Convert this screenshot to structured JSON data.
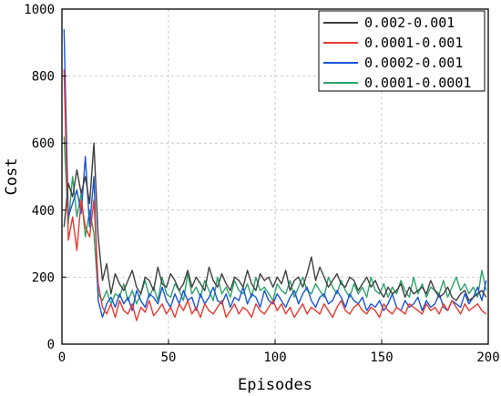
{
  "chart_data": {
    "type": "line",
    "xlabel": "Episodes",
    "ylabel": "Cost",
    "xlim": [
      0,
      200
    ],
    "ylim": [
      0,
      1000
    ],
    "xticks": [
      0,
      50,
      100,
      150,
      200
    ],
    "yticks": [
      0,
      200,
      400,
      600,
      800,
      1000
    ],
    "grid": true,
    "legend_position": "top-right",
    "series": [
      {
        "name": "0.002-0.001",
        "color": "#3f3f3f",
        "x": [
          1,
          3,
          5,
          7,
          9,
          11,
          13,
          15,
          17,
          19,
          21,
          23,
          25,
          27,
          29,
          31,
          33,
          35,
          37,
          39,
          41,
          43,
          45,
          47,
          49,
          51,
          53,
          55,
          57,
          59,
          61,
          63,
          65,
          67,
          69,
          71,
          73,
          75,
          77,
          79,
          81,
          83,
          85,
          87,
          89,
          91,
          93,
          95,
          97,
          99,
          101,
          103,
          105,
          107,
          109,
          111,
          113,
          115,
          117,
          119,
          121,
          123,
          125,
          127,
          129,
          131,
          133,
          135,
          137,
          139,
          141,
          143,
          145,
          147,
          149,
          151,
          153,
          155,
          157,
          159,
          161,
          163,
          165,
          167,
          169,
          171,
          173,
          175,
          177,
          179,
          181,
          183,
          185,
          187,
          189,
          191,
          193,
          195,
          197,
          199
        ],
        "y": [
          350,
          480,
          440,
          520,
          450,
          500,
          420,
          600,
          320,
          190,
          240,
          150,
          210,
          180,
          160,
          190,
          220,
          170,
          150,
          200,
          190,
          160,
          230,
          180,
          170,
          210,
          190,
          160,
          180,
          220,
          170,
          200,
          180,
          160,
          230,
          190,
          170,
          210,
          180,
          160,
          200,
          190,
          170,
          220,
          180,
          160,
          210,
          190,
          200,
          170,
          200,
          180,
          220,
          160,
          190,
          200,
          170,
          210,
          260,
          190,
          230,
          200,
          170,
          190,
          210,
          180,
          170,
          200,
          190,
          160,
          180,
          200,
          170,
          190,
          160,
          140,
          170,
          150,
          160,
          180,
          140,
          170,
          150,
          160,
          170,
          150,
          190,
          160,
          140,
          150,
          170,
          140,
          130,
          150,
          160,
          130,
          140,
          150,
          160,
          140
        ]
      },
      {
        "name": "0.0001-0.001",
        "color": "#e8392f",
        "x": [
          1,
          3,
          5,
          7,
          9,
          11,
          13,
          15,
          17,
          19,
          21,
          23,
          25,
          27,
          29,
          31,
          33,
          35,
          37,
          39,
          41,
          43,
          45,
          47,
          49,
          51,
          53,
          55,
          57,
          59,
          61,
          63,
          65,
          67,
          69,
          71,
          73,
          75,
          77,
          79,
          81,
          83,
          85,
          87,
          89,
          91,
          93,
          95,
          97,
          99,
          101,
          103,
          105,
          107,
          109,
          111,
          113,
          115,
          117,
          119,
          121,
          123,
          125,
          127,
          129,
          131,
          133,
          135,
          137,
          139,
          141,
          143,
          145,
          147,
          149,
          151,
          153,
          155,
          157,
          159,
          161,
          163,
          165,
          167,
          169,
          171,
          173,
          175,
          177,
          179,
          181,
          183,
          185,
          187,
          189,
          191,
          193,
          195,
          197,
          199
        ],
        "y": [
          820,
          310,
          380,
          280,
          430,
          350,
          320,
          430,
          180,
          110,
          90,
          120,
          80,
          130,
          100,
          90,
          120,
          70,
          110,
          95,
          130,
          85,
          100,
          120,
          90,
          110,
          80,
          120,
          100,
          130,
          90,
          110,
          80,
          120,
          100,
          90,
          110,
          130,
          80,
          100,
          120,
          90,
          110,
          100,
          80,
          120,
          100,
          90,
          110,
          130,
          100,
          120,
          90,
          110,
          80,
          100,
          120,
          90,
          110,
          100,
          90,
          120,
          100,
          80,
          110,
          130,
          100,
          90,
          110,
          120,
          100,
          90,
          110,
          100,
          80,
          120,
          100,
          90,
          110,
          100,
          90,
          120,
          110,
          100,
          90,
          120,
          100,
          110,
          90,
          120,
          100,
          130,
          110,
          90,
          120,
          100,
          110,
          120,
          100,
          90
        ]
      },
      {
        "name": "0.0002-0.001",
        "color": "#1a54d6",
        "x": [
          1,
          3,
          5,
          7,
          9,
          11,
          13,
          15,
          17,
          19,
          21,
          23,
          25,
          27,
          29,
          31,
          33,
          35,
          37,
          39,
          41,
          43,
          45,
          47,
          49,
          51,
          53,
          55,
          57,
          59,
          61,
          63,
          65,
          67,
          69,
          71,
          73,
          75,
          77,
          79,
          81,
          83,
          85,
          87,
          89,
          91,
          93,
          95,
          97,
          99,
          101,
          103,
          105,
          107,
          109,
          111,
          113,
          115,
          117,
          119,
          121,
          123,
          125,
          127,
          129,
          131,
          133,
          135,
          137,
          139,
          141,
          143,
          145,
          147,
          149,
          151,
          153,
          155,
          157,
          159,
          161,
          163,
          165,
          167,
          169,
          171,
          173,
          175,
          177,
          179,
          181,
          183,
          185,
          187,
          189,
          191,
          193,
          195,
          197,
          199
        ],
        "y": [
          940,
          380,
          420,
          460,
          390,
          560,
          350,
          500,
          130,
          80,
          120,
          140,
          110,
          150,
          120,
          140,
          100,
          160,
          130,
          110,
          150,
          140,
          120,
          170,
          130,
          110,
          150,
          120,
          160,
          130,
          140,
          100,
          150,
          120,
          140,
          170,
          130,
          120,
          150,
          110,
          140,
          130,
          170,
          120,
          150,
          140,
          110,
          160,
          130,
          120,
          150,
          130,
          110,
          140,
          160,
          120,
          150,
          170,
          130,
          110,
          140,
          150,
          120,
          130,
          160,
          140,
          110,
          150,
          130,
          120,
          140,
          100,
          120,
          110,
          130,
          100,
          120,
          150,
          110,
          100,
          130,
          110,
          120,
          140,
          100,
          130,
          110,
          120,
          150,
          110,
          100,
          130,
          120,
          110,
          150,
          120,
          140,
          170,
          130,
          190
        ]
      },
      {
        "name": "0.0001-0.0001",
        "color": "#2ea36b",
        "x": [
          1,
          3,
          5,
          7,
          9,
          11,
          13,
          15,
          17,
          19,
          21,
          23,
          25,
          27,
          29,
          31,
          33,
          35,
          37,
          39,
          41,
          43,
          45,
          47,
          49,
          51,
          53,
          55,
          57,
          59,
          61,
          63,
          65,
          67,
          69,
          71,
          73,
          75,
          77,
          79,
          81,
          83,
          85,
          87,
          89,
          91,
          93,
          95,
          97,
          99,
          101,
          103,
          105,
          107,
          109,
          111,
          113,
          115,
          117,
          119,
          121,
          123,
          125,
          127,
          129,
          131,
          133,
          135,
          137,
          139,
          141,
          143,
          145,
          147,
          149,
          151,
          153,
          155,
          157,
          159,
          161,
          163,
          165,
          167,
          169,
          171,
          173,
          175,
          177,
          179,
          181,
          183,
          185,
          187,
          189,
          191,
          193,
          195,
          197,
          199
        ],
        "y": [
          620,
          360,
          500,
          380,
          450,
          320,
          400,
          330,
          150,
          130,
          160,
          120,
          150,
          140,
          180,
          130,
          160,
          120,
          150,
          190,
          140,
          170,
          130,
          200,
          150,
          140,
          180,
          160,
          130,
          210,
          150,
          170,
          140,
          190,
          160,
          130,
          200,
          150,
          170,
          140,
          190,
          160,
          150,
          180,
          140,
          200,
          160,
          170,
          150,
          130,
          180,
          160,
          150,
          190,
          140,
          170,
          200,
          160,
          150,
          180,
          160,
          140,
          200,
          170,
          150,
          190,
          160,
          140,
          180,
          150,
          170,
          140,
          200,
          160,
          150,
          180,
          140,
          170,
          150,
          190,
          160,
          140,
          200,
          150,
          180,
          140,
          170,
          160,
          150,
          190,
          140,
          170,
          200,
          160,
          180,
          150,
          170,
          140,
          220,
          160
        ]
      }
    ]
  }
}
